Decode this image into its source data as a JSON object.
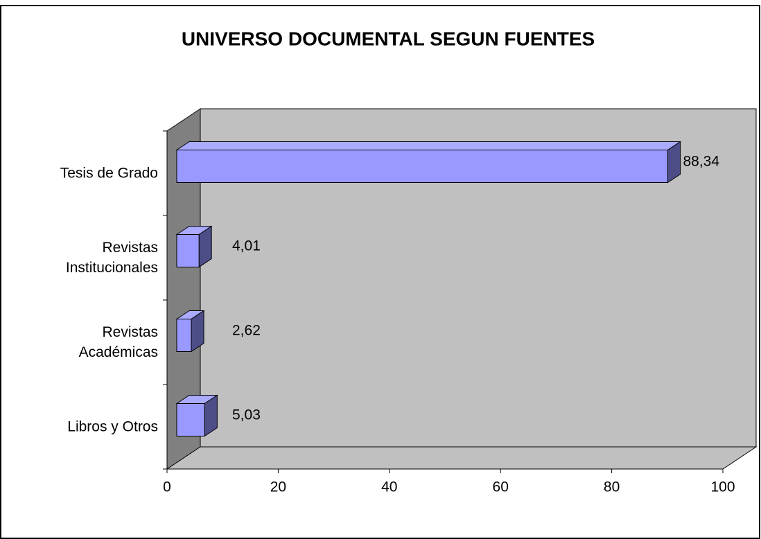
{
  "chart_data": {
    "type": "bar3d_horizontal",
    "title": "UNIVERSO DOCUMENTAL SEGUN FUENTES",
    "categories": [
      "Tesis de Grado",
      "Revistas\nInstitucionales",
      "Revistas\nAcadémicas",
      "Libros y Otros"
    ],
    "values": [
      88.34,
      4.01,
      2.62,
      5.03
    ],
    "value_labels": [
      "88,34",
      "4,01",
      "2,62",
      "5,03"
    ],
    "color": "#9999ff",
    "xlim": [
      0,
      100
    ],
    "xticks": [
      0,
      20,
      40,
      60,
      80,
      100
    ]
  }
}
